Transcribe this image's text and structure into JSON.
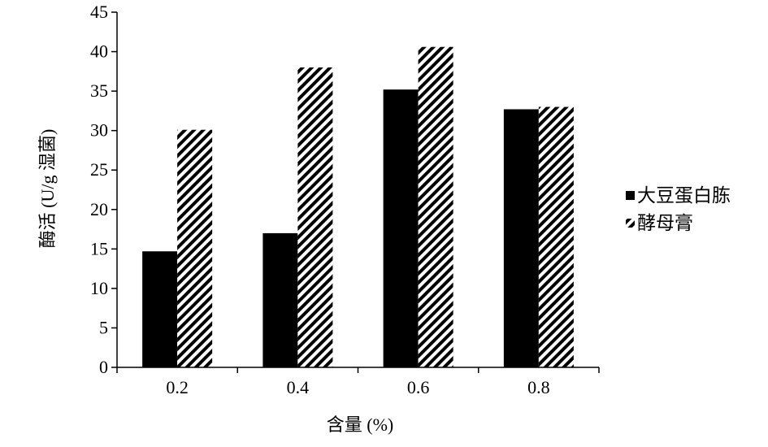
{
  "chart_data": {
    "type": "bar",
    "title": "",
    "xlabel": "含量 (%)",
    "ylabel": "酶活 (U/g 湿菌)",
    "categories": [
      "0.2",
      "0.4",
      "0.6",
      "0.8"
    ],
    "ylim": [
      0,
      45
    ],
    "yticks": [
      0,
      5,
      10,
      15,
      20,
      25,
      30,
      35,
      40,
      45
    ],
    "grid": false,
    "legend_position": "right",
    "series": [
      {
        "name": "大豆蛋白胨",
        "values": [
          14.7,
          17.0,
          35.2,
          32.7
        ],
        "fill": "solid",
        "color": "#000000"
      },
      {
        "name": "酵母膏",
        "values": [
          30.1,
          38.0,
          40.6,
          33.0
        ],
        "fill": "diagonal-hatch",
        "color": "#000000"
      }
    ]
  }
}
